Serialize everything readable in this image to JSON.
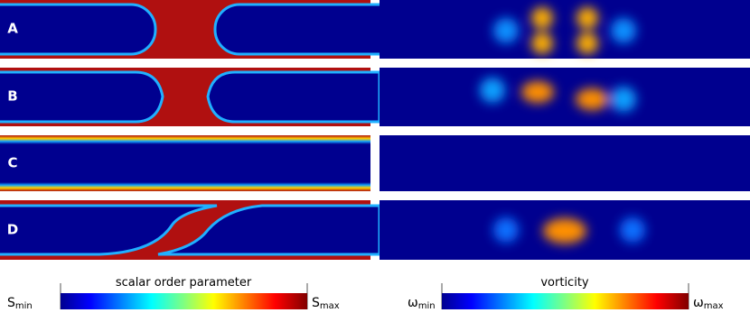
{
  "panels": [
    {
      "label": "A"
    },
    {
      "label": "B"
    },
    {
      "label": "C"
    },
    {
      "label": "D"
    }
  ],
  "colorbars": [
    {
      "title": "scalar order parameter",
      "min": {
        "symbol": "S",
        "sub": "min"
      },
      "max": {
        "symbol": "S",
        "sub": "max"
      }
    },
    {
      "title": "vorticity",
      "min": {
        "symbol": "ω",
        "sub": "min"
      },
      "max": {
        "symbol": "ω",
        "sub": "max"
      }
    }
  ]
}
